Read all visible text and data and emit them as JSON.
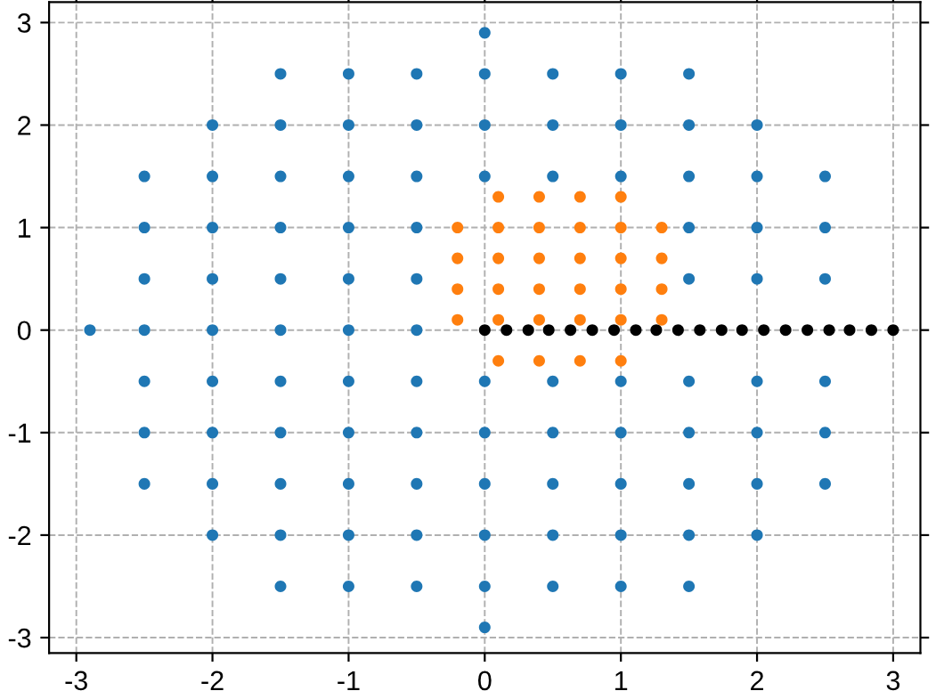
{
  "chart_data": {
    "type": "scatter",
    "marker": "circle",
    "grid": true,
    "legend": false,
    "xlim": [
      -3.2,
      3.2
    ],
    "ylim": [
      -3.15,
      3.2
    ],
    "xticks": [
      -3,
      -2,
      -1,
      0,
      1,
      2,
      3
    ],
    "yticks": [
      -3,
      -2,
      -1,
      0,
      1,
      2,
      3
    ],
    "series": [
      {
        "color": "#1f77b4",
        "x": [
          -2.9,
          -2.5,
          -2.5,
          -2.5,
          -2.5,
          -2.5,
          -2.5,
          -2.5,
          -2,
          -2,
          -2,
          -2,
          -2,
          -2,
          -2,
          -2,
          -2,
          -1.5,
          -1.5,
          -1.5,
          -1.5,
          -1.5,
          -1.5,
          -1.5,
          -1.5,
          -1.5,
          -1.5,
          -1.5,
          -1,
          -1,
          -1,
          -1,
          -1,
          -1,
          -1,
          -1,
          -1,
          -1,
          -1,
          -0.5,
          -0.5,
          -0.5,
          -0.5,
          -0.5,
          -0.5,
          -0.5,
          -0.5,
          -0.5,
          -0.5,
          -0.5,
          0,
          0,
          0,
          0,
          0,
          0,
          0,
          0,
          0,
          0,
          0.5,
          0.5,
          0.5,
          0.5,
          0.5,
          0.5,
          0.5,
          0.5,
          1,
          1,
          1,
          1,
          1,
          1,
          1,
          1,
          1.5,
          1.5,
          1.5,
          1.5,
          1.5,
          1.5,
          1.5,
          1.5,
          1.5,
          1.5,
          2,
          2,
          2,
          2,
          2,
          2,
          2,
          2,
          2.5,
          2.5,
          2.5,
          2.5,
          2.5,
          2.5
        ],
        "values": [
          0,
          -1.5,
          -1,
          -0.5,
          0,
          0.5,
          1,
          1.5,
          -2,
          -1.5,
          -1,
          -0.5,
          0,
          0.5,
          1,
          1.5,
          2,
          -2.5,
          -2,
          -1.5,
          -1,
          -0.5,
          0,
          0.5,
          1,
          1.5,
          2,
          2.5,
          -2.5,
          -2,
          -1.5,
          -1,
          -0.5,
          0,
          0.5,
          1,
          1.5,
          2,
          2.5,
          -2.5,
          -2,
          -1.5,
          -1,
          -0.5,
          0,
          0.5,
          1,
          1.5,
          2,
          2.5,
          -2.9,
          -2.5,
          -2,
          -1.5,
          -1,
          -0.5,
          1.5,
          2,
          2.5,
          2.9,
          -2.5,
          -2,
          -1.5,
          -1,
          -0.5,
          1.5,
          2,
          2.5,
          -2.5,
          -2,
          -1.5,
          -1,
          -0.5,
          1.5,
          2,
          2.5,
          -2.5,
          -2,
          -1.5,
          -1,
          -0.5,
          0.5,
          1,
          1.5,
          2,
          2.5,
          -2,
          -1.5,
          -1,
          -0.5,
          0.5,
          1,
          1.5,
          2,
          -1.5,
          -1,
          -0.5,
          0.5,
          1,
          1.5
        ]
      },
      {
        "color": "#ff7f0e",
        "x": [
          -0.2,
          -0.2,
          -0.2,
          -0.2,
          0.1,
          0.1,
          0.1,
          0.1,
          0.1,
          0.1,
          0.4,
          0.4,
          0.4,
          0.4,
          0.4,
          0.4,
          0.7,
          0.7,
          0.7,
          0.7,
          0.7,
          0.7,
          1.0,
          1.0,
          1.0,
          1.0,
          1.0,
          1.0,
          1.3,
          1.3,
          1.3,
          1.3
        ],
        "values": [
          0.1,
          0.4,
          0.7,
          1.0,
          -0.3,
          0.1,
          0.4,
          0.7,
          1.0,
          1.3,
          -0.3,
          0.1,
          0.4,
          0.7,
          1.0,
          1.3,
          -0.3,
          0.1,
          0.4,
          0.7,
          1.0,
          1.3,
          -0.3,
          0.1,
          0.4,
          0.7,
          1.0,
          1.3,
          0.1,
          0.4,
          0.7,
          1.0
        ]
      },
      {
        "color": "#000000",
        "x": [
          0,
          0.16,
          0.32,
          0.47,
          0.63,
          0.79,
          0.95,
          1.11,
          1.26,
          1.42,
          1.58,
          1.74,
          1.89,
          2.05,
          2.21,
          2.37,
          2.53,
          2.68,
          2.84,
          3
        ],
        "values": [
          0,
          0,
          0,
          0,
          0,
          0,
          0,
          0,
          0,
          0,
          0,
          0,
          0,
          0,
          0,
          0,
          0,
          0,
          0,
          0
        ]
      }
    ]
  }
}
